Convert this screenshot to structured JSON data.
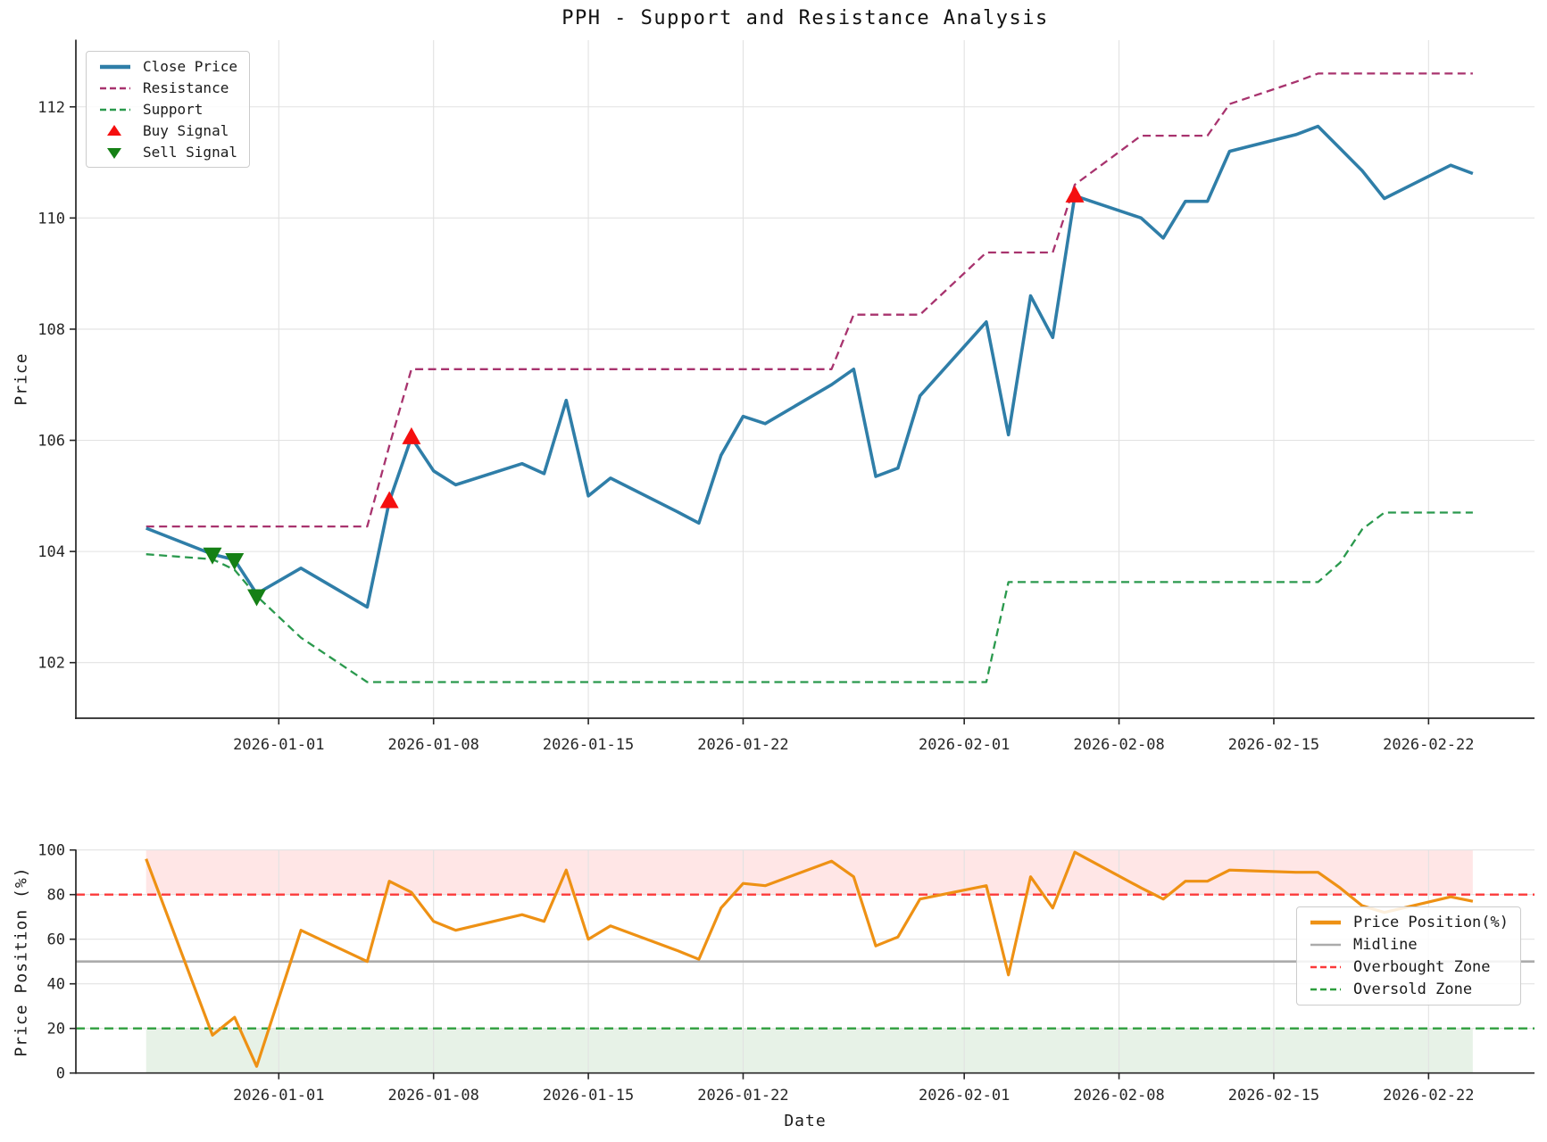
{
  "title": "PPH - Support and Resistance Analysis",
  "chart_data": [
    {
      "type": "line",
      "panel": "price",
      "title": "PPH - Support and Resistance Analysis",
      "ylabel": "Price",
      "ylim": [
        101.0,
        113.2
      ],
      "y_ticks": [
        102,
        104,
        106,
        108,
        110,
        112
      ],
      "x_ticks": [
        "2026-01-01",
        "2026-01-08",
        "2026-01-15",
        "2026-01-22",
        "2026-02-01",
        "2026-02-08",
        "2026-02-15",
        "2026-02-22"
      ],
      "grid": true,
      "legend_position": "upper-left",
      "dates": [
        "2025-12-26",
        "2025-12-29",
        "2025-12-30",
        "2025-12-31",
        "2026-01-02",
        "2026-01-05",
        "2026-01-06",
        "2026-01-07",
        "2026-01-08",
        "2026-01-09",
        "2026-01-12",
        "2026-01-13",
        "2026-01-14",
        "2026-01-15",
        "2026-01-16",
        "2026-01-19",
        "2026-01-20",
        "2026-01-21",
        "2026-01-22",
        "2026-01-23",
        "2026-01-26",
        "2026-01-27",
        "2026-01-28",
        "2026-01-29",
        "2026-01-30",
        "2026-02-02",
        "2026-02-03",
        "2026-02-04",
        "2026-02-05",
        "2026-02-06",
        "2026-02-09",
        "2026-02-10",
        "2026-02-11",
        "2026-02-12",
        "2026-02-13",
        "2026-02-16",
        "2026-02-17",
        "2026-02-18",
        "2026-02-19",
        "2026-02-20",
        "2026-02-23",
        "2026-02-24"
      ],
      "series": [
        {
          "name": "Close Price",
          "color": "#2f7ea8",
          "style": "solid",
          "width": 3.6,
          "values": [
            104.42,
            103.95,
            103.85,
            103.24,
            103.7,
            103.0,
            104.9,
            106.05,
            105.45,
            105.2,
            105.58,
            105.4,
            106.72,
            105.0,
            105.32,
            104.72,
            104.51,
            105.73,
            106.43,
            106.3,
            107.0,
            107.28,
            105.35,
            105.5,
            106.8,
            108.13,
            106.1,
            108.6,
            107.85,
            110.4,
            110.0,
            109.64,
            110.3,
            110.3,
            111.2,
            111.5,
            111.65,
            111.25,
            110.85,
            110.35,
            110.95,
            110.8
          ]
        },
        {
          "name": "Resistance",
          "color": "#a8336e",
          "style": "dashed",
          "width": 2.3,
          "values": [
            104.45,
            104.45,
            104.45,
            104.45,
            104.45,
            104.45,
            105.9,
            107.28,
            107.28,
            107.28,
            107.28,
            107.28,
            107.28,
            107.28,
            107.28,
            107.28,
            107.28,
            107.28,
            107.28,
            107.28,
            107.28,
            108.26,
            108.26,
            108.26,
            108.26,
            109.38,
            109.38,
            109.38,
            109.38,
            110.6,
            111.48,
            111.48,
            111.48,
            111.48,
            112.05,
            112.45,
            112.6,
            112.6,
            112.6,
            112.6,
            112.6,
            112.6
          ]
        },
        {
          "name": "Support",
          "color": "#2a994d",
          "style": "dashed",
          "width": 2.3,
          "values": [
            103.95,
            103.86,
            103.67,
            103.2,
            102.45,
            101.65,
            101.65,
            101.65,
            101.65,
            101.65,
            101.65,
            101.65,
            101.65,
            101.65,
            101.65,
            101.65,
            101.65,
            101.65,
            101.65,
            101.65,
            101.65,
            101.65,
            101.65,
            101.65,
            101.65,
            101.65,
            103.45,
            103.45,
            103.45,
            103.45,
            103.45,
            103.45,
            103.45,
            103.45,
            103.45,
            103.45,
            103.45,
            103.8,
            104.4,
            104.7,
            104.7,
            104.7
          ]
        }
      ],
      "buy_signals": {
        "name": "Buy Signal",
        "color": "#f50f0f",
        "points": [
          {
            "date": "2026-01-06",
            "price": 104.9
          },
          {
            "date": "2026-01-07",
            "price": 106.05
          },
          {
            "date": "2026-02-06",
            "price": 110.4
          }
        ]
      },
      "sell_signals": {
        "name": "Sell Signal",
        "color": "#158015",
        "points": [
          {
            "date": "2025-12-29",
            "price": 103.95
          },
          {
            "date": "2025-12-30",
            "price": 103.85
          },
          {
            "date": "2025-12-31",
            "price": 103.2
          }
        ]
      },
      "legend": [
        {
          "label": "Close Price",
          "glyph": "line",
          "color": "#2f7ea8"
        },
        {
          "label": "Resistance",
          "glyph": "dash",
          "color": "#a8336e"
        },
        {
          "label": "Support",
          "glyph": "dash",
          "color": "#2a994d"
        },
        {
          "label": "Buy Signal",
          "glyph": "tri-up",
          "color": "#f50f0f"
        },
        {
          "label": "Sell Signal",
          "glyph": "tri-down",
          "color": "#158015"
        }
      ]
    },
    {
      "type": "line",
      "panel": "price_position",
      "ylabel": "Price Position (%)",
      "xlabel": "Date",
      "ylim": [
        0,
        100
      ],
      "y_ticks": [
        0,
        20,
        40,
        60,
        80,
        100
      ],
      "x_ticks": [
        "2026-01-01",
        "2026-01-08",
        "2026-01-15",
        "2026-01-22",
        "2026-02-01",
        "2026-02-08",
        "2026-02-15",
        "2026-02-22"
      ],
      "grid": true,
      "legend_position": "right",
      "dates": [
        "2025-12-26",
        "2025-12-29",
        "2025-12-30",
        "2025-12-31",
        "2026-01-02",
        "2026-01-05",
        "2026-01-06",
        "2026-01-07",
        "2026-01-08",
        "2026-01-09",
        "2026-01-12",
        "2026-01-13",
        "2026-01-14",
        "2026-01-15",
        "2026-01-16",
        "2026-01-19",
        "2026-01-20",
        "2026-01-21",
        "2026-01-22",
        "2026-01-23",
        "2026-01-26",
        "2026-01-27",
        "2026-01-28",
        "2026-01-29",
        "2026-01-30",
        "2026-02-02",
        "2026-02-03",
        "2026-02-04",
        "2026-02-05",
        "2026-02-06",
        "2026-02-09",
        "2026-02-10",
        "2026-02-11",
        "2026-02-12",
        "2026-02-13",
        "2026-02-16",
        "2026-02-17",
        "2026-02-18",
        "2026-02-19",
        "2026-02-20",
        "2026-02-23",
        "2026-02-24"
      ],
      "series": [
        {
          "name": "Price Position(%)",
          "color": "#ee9114",
          "style": "solid",
          "width": 3.2,
          "values": [
            96,
            17,
            25,
            3,
            64,
            50,
            86,
            81,
            68,
            64,
            71,
            68,
            91,
            60,
            66,
            55,
            51,
            74,
            85,
            84,
            95,
            88,
            57,
            61,
            78,
            84,
            44,
            88,
            74,
            99,
            83,
            78,
            86,
            86,
            91,
            90,
            90,
            83,
            75,
            72,
            79,
            77
          ]
        }
      ],
      "reference_lines": [
        {
          "name": "Midline",
          "value": 50,
          "color": "#ababab",
          "style": "solid",
          "width": 2.6
        },
        {
          "name": "Overbought Zone",
          "value": 80,
          "color": "#fb3a3a",
          "style": "dashed",
          "width": 2.3
        },
        {
          "name": "Oversold Zone",
          "value": 20,
          "color": "#2e9e3e",
          "style": "dashed",
          "width": 2.3
        }
      ],
      "zones": [
        {
          "name": "overbought-zone",
          "from": 80,
          "to": 100,
          "color": "rgba(255,80,80,0.14)"
        },
        {
          "name": "oversold-zone",
          "from": 0,
          "to": 20,
          "color": "rgba(110,175,110,0.17)"
        }
      ],
      "legend": [
        {
          "label": "Price Position(%)",
          "glyph": "line",
          "color": "#ee9114"
        },
        {
          "label": "Midline",
          "glyph": "line-thin",
          "color": "#ababab"
        },
        {
          "label": "Overbought Zone",
          "glyph": "dash",
          "color": "#fb3a3a"
        },
        {
          "label": "Oversold Zone",
          "glyph": "dash",
          "color": "#2e9e3e"
        }
      ]
    }
  ]
}
